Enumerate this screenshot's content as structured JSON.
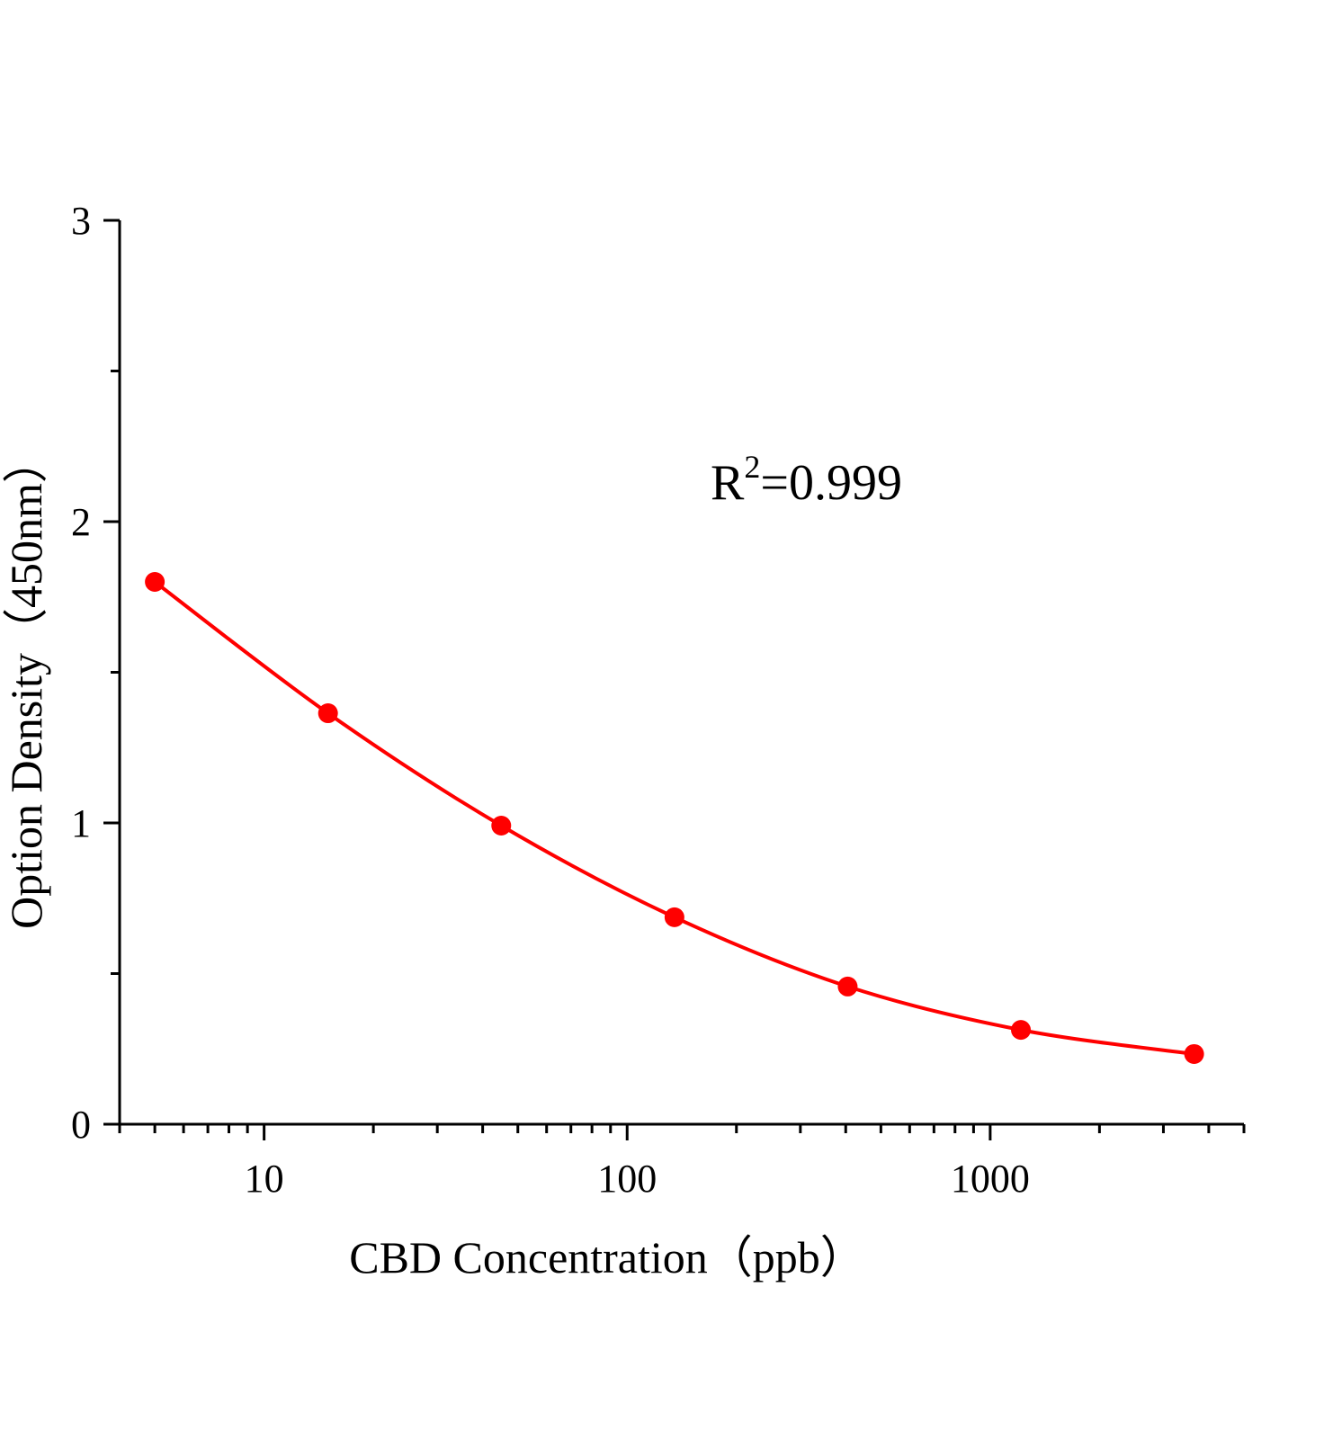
{
  "chart_data": {
    "type": "line",
    "title": "",
    "xlabel": "CBD Concentration（ppb）",
    "ylabel": "Option Density（450nm）",
    "xscale": "log",
    "xlim": [
      4,
      5000
    ],
    "ylim": [
      0,
      3
    ],
    "x_ticks": [
      10,
      100,
      1000
    ],
    "x_tick_labels": [
      "10",
      "100",
      "1000"
    ],
    "y_ticks": [
      0,
      1,
      2,
      3
    ],
    "y_tick_labels": [
      "0",
      "1",
      "2",
      "3"
    ],
    "grid": false,
    "legend": "none",
    "annotation": {
      "base": "R",
      "sup": "2",
      "rest": "=0.999"
    },
    "series": [
      {
        "color": "#ff0000",
        "marker": "circle",
        "smooth_fit": true,
        "x": [
          5,
          15,
          45,
          135,
          405,
          1215,
          3645
        ],
        "y": [
          1.8,
          1.364,
          0.991,
          0.687,
          0.457,
          0.313,
          0.233
        ]
      }
    ]
  }
}
